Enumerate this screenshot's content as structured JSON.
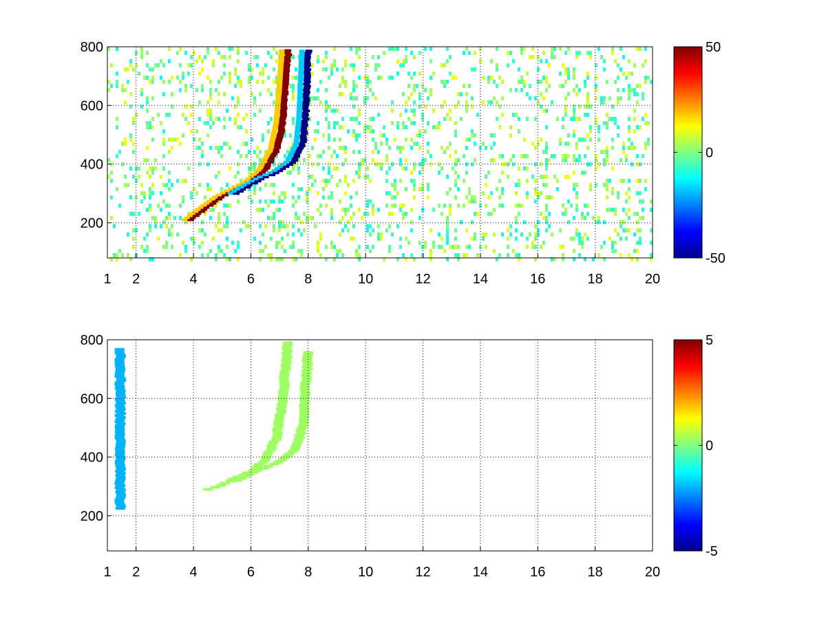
{
  "chart_data": [
    {
      "type": "heatmap",
      "title": "",
      "xlabel": "",
      "ylabel": "",
      "x_ticks": [
        "1",
        "2",
        "4",
        "6",
        "8",
        "10",
        "12",
        "14",
        "16",
        "18",
        "20"
      ],
      "x_tick_values": [
        1,
        2,
        4,
        6,
        8,
        10,
        12,
        14,
        16,
        18,
        20
      ],
      "y_ticks": [
        "200",
        "400",
        "600",
        "800"
      ],
      "y_tick_values": [
        200,
        400,
        600,
        800
      ],
      "xlim": [
        1,
        20
      ],
      "ylim": [
        80,
        800
      ],
      "grid": true,
      "grid_style": "dotted",
      "colormap": "jet",
      "colorbar": {
        "min": -50,
        "max": 50,
        "ticks": [
          "50",
          "0",
          "-50"
        ],
        "tick_values": [
          50,
          0,
          -50
        ],
        "placement": "right"
      },
      "features": [
        {
          "name": "positive ridge",
          "value": 50,
          "points": [
            [
              3.9,
              210
            ],
            [
              4.5,
              255
            ],
            [
              5.0,
              290
            ],
            [
              5.5,
              315
            ],
            [
              6.0,
              340
            ],
            [
              6.5,
              380
            ],
            [
              6.9,
              450
            ],
            [
              7.1,
              540
            ],
            [
              7.2,
              650
            ],
            [
              7.3,
              790
            ]
          ]
        },
        {
          "name": "negative ridge",
          "value": -50,
          "points": [
            [
              5.5,
              300
            ],
            [
              6.0,
              330
            ],
            [
              6.5,
              355
            ],
            [
              7.0,
              375
            ],
            [
              7.5,
              410
            ],
            [
              7.8,
              470
            ],
            [
              7.9,
              560
            ],
            [
              7.95,
              680
            ],
            [
              8.0,
              790
            ]
          ]
        }
      ],
      "background_noise_range": [
        -12,
        12
      ]
    },
    {
      "type": "heatmap",
      "title": "",
      "xlabel": "",
      "ylabel": "",
      "x_ticks": [
        "1",
        "2",
        "4",
        "6",
        "8",
        "10",
        "12",
        "14",
        "16",
        "18",
        "20"
      ],
      "x_tick_values": [
        1,
        2,
        4,
        6,
        8,
        10,
        12,
        14,
        16,
        18,
        20
      ],
      "y_ticks": [
        "200",
        "400",
        "600",
        "800"
      ],
      "y_tick_values": [
        200,
        400,
        600,
        800
      ],
      "xlim": [
        1,
        20
      ],
      "ylim": [
        80,
        800
      ],
      "grid": true,
      "grid_style": "dotted",
      "colormap": "jet",
      "colorbar": {
        "min": -5,
        "max": 5,
        "ticks": [
          "5",
          "0",
          "-5"
        ],
        "tick_values": [
          5,
          0,
          -5
        ],
        "placement": "right"
      },
      "features": [
        {
          "name": "curve A",
          "value": 0.3,
          "points": [
            [
              4.5,
              290
            ],
            [
              5.0,
              305
            ],
            [
              5.5,
              330
            ],
            [
              6.0,
              350
            ],
            [
              6.5,
              390
            ],
            [
              6.9,
              470
            ],
            [
              7.1,
              580
            ],
            [
              7.2,
              700
            ],
            [
              7.3,
              790
            ]
          ]
        },
        {
          "name": "curve B",
          "value": 0.3,
          "points": [
            [
              5.5,
              320
            ],
            [
              6.0,
              345
            ],
            [
              6.5,
              365
            ],
            [
              7.0,
              385
            ],
            [
              7.5,
              420
            ],
            [
              7.8,
              500
            ],
            [
              7.9,
              620
            ],
            [
              8.0,
              760
            ]
          ]
        },
        {
          "name": "vertical streak",
          "value": -2,
          "points": [
            [
              1.45,
              225
            ],
            [
              1.45,
              770
            ]
          ]
        }
      ]
    }
  ],
  "colors": {
    "jet_stops": [
      "#00008f",
      "#0000ff",
      "#00ffff",
      "#80ff80",
      "#ffff00",
      "#ff0000",
      "#800000"
    ],
    "grid": "#000000",
    "axes": "#000000",
    "background": "#ffffff"
  }
}
